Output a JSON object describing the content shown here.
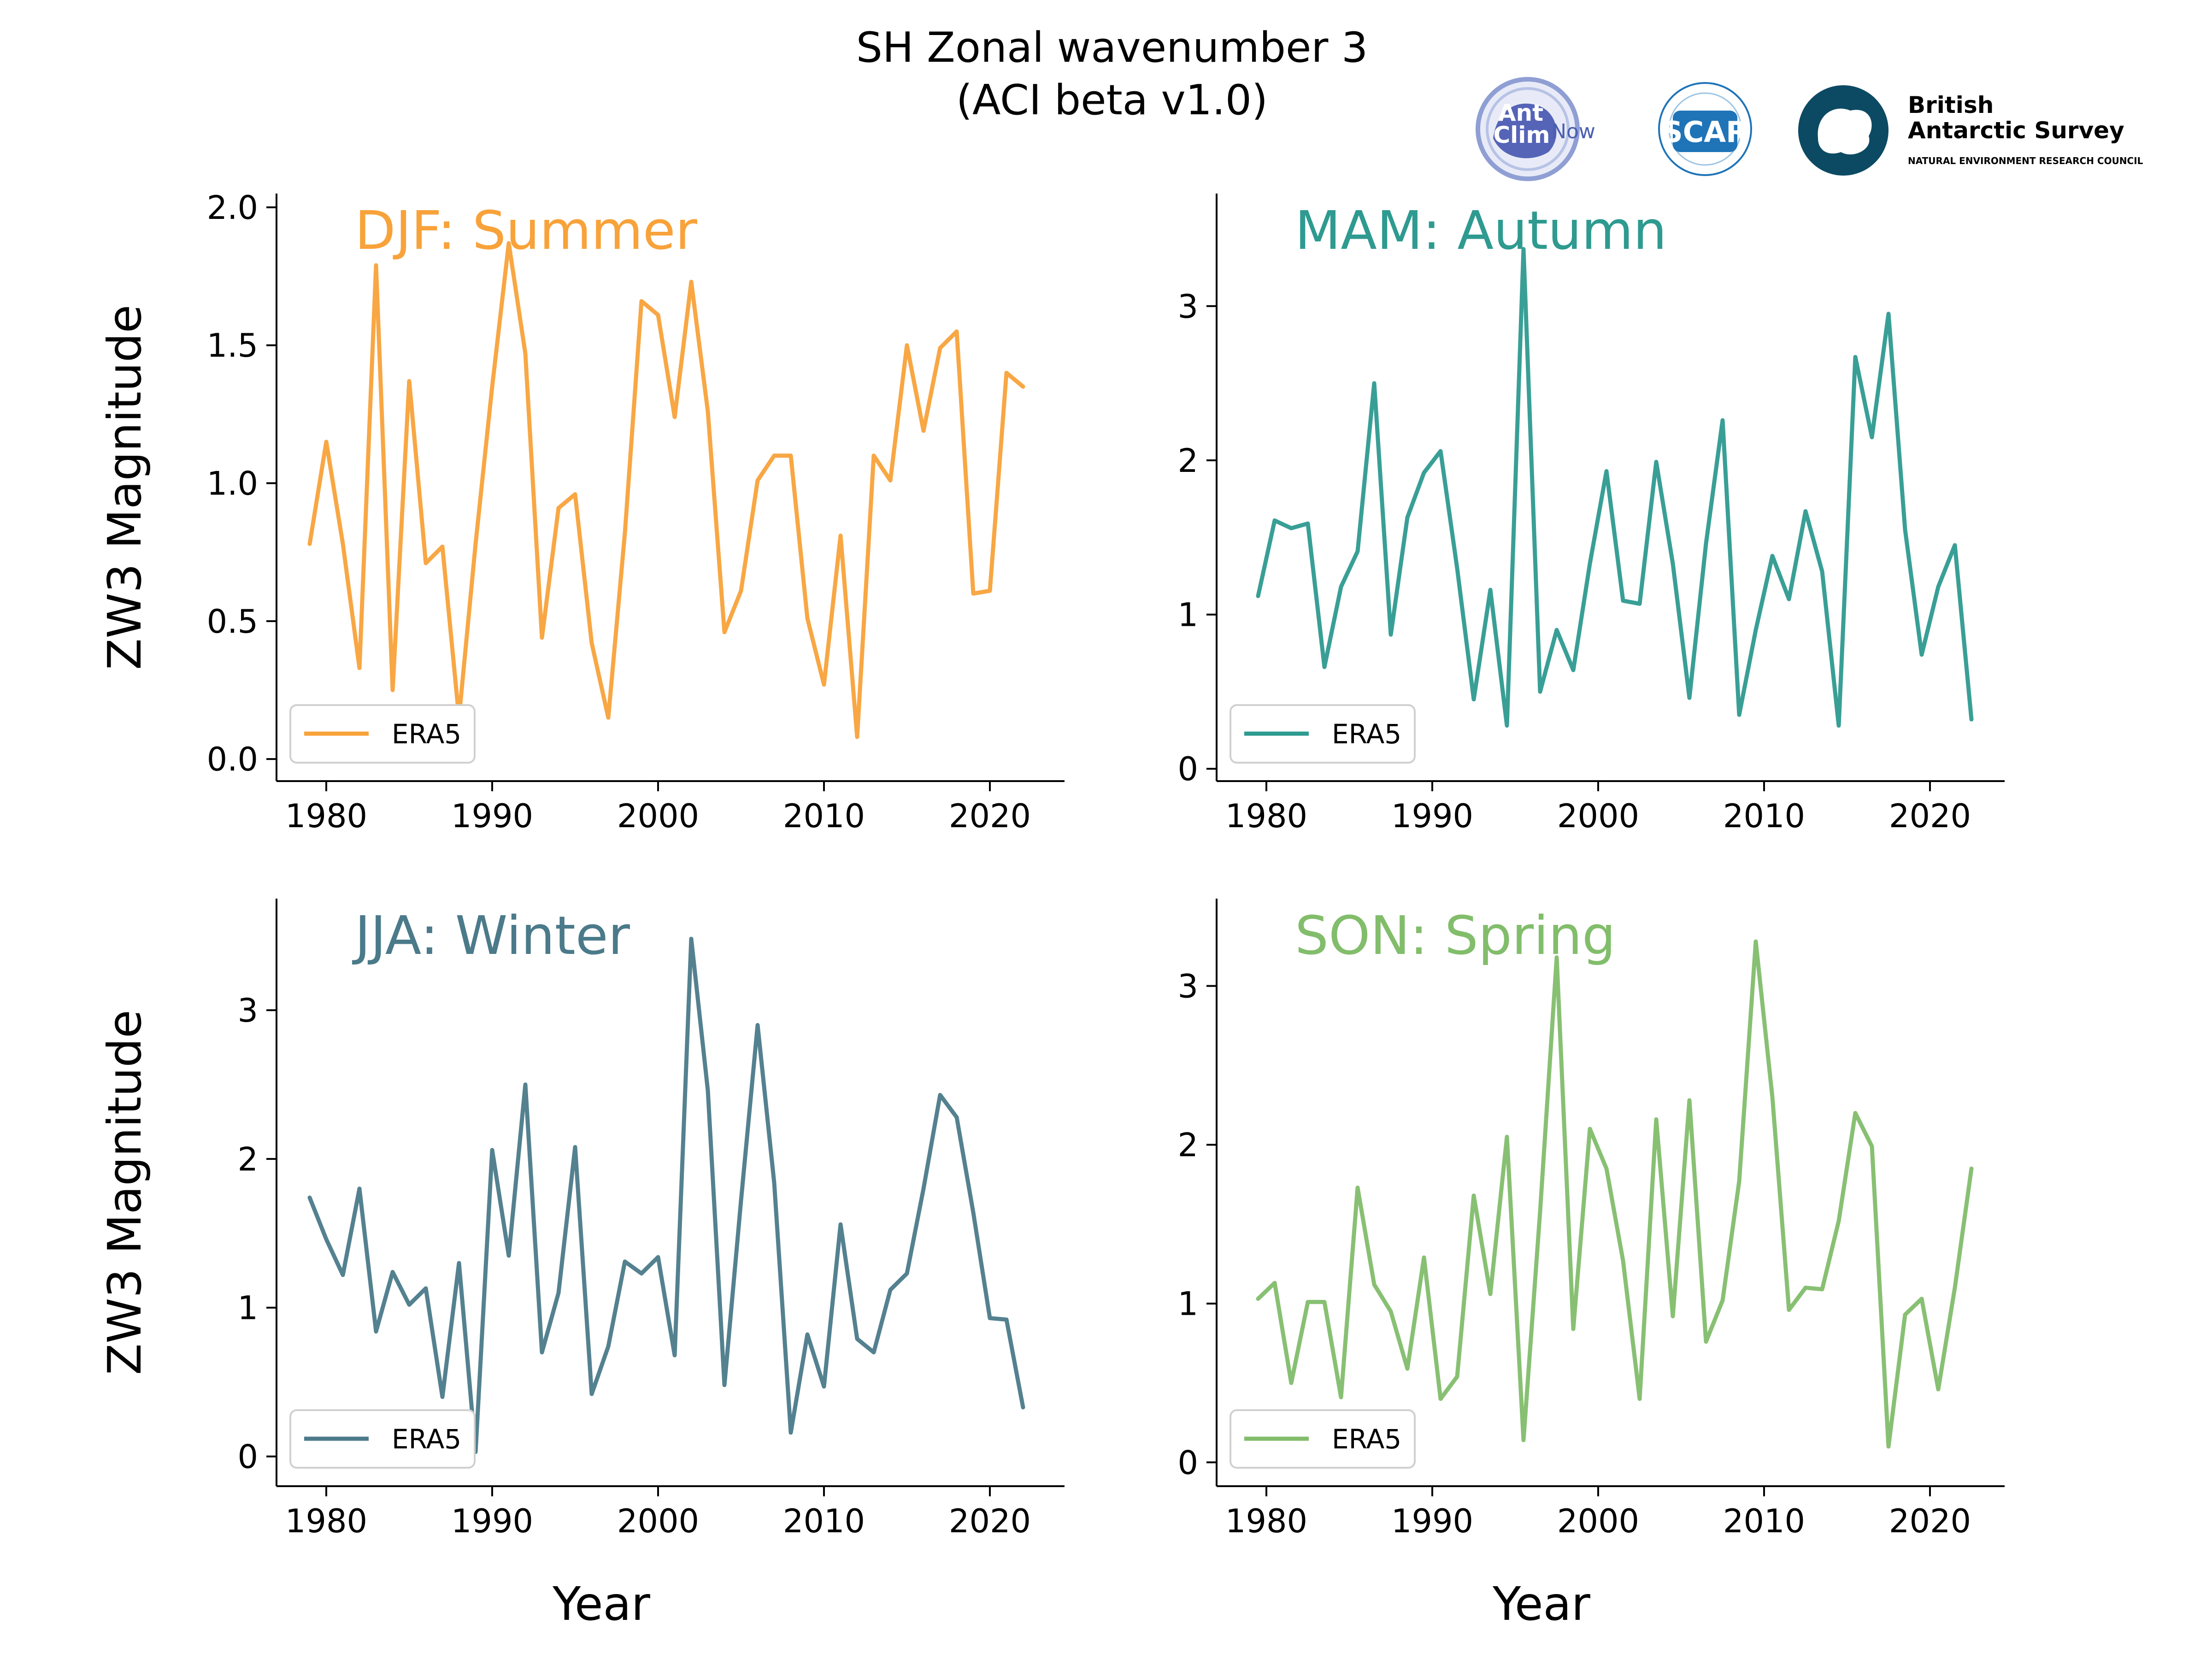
{
  "figure": {
    "title_line1": "SH Zonal wavenumber 3",
    "title_line2": "(ACI beta v1.0)"
  },
  "logos": {
    "antclimnow": {
      "line1": "Ant",
      "line2": "Clim",
      "line3": "Now"
    },
    "scar": {
      "text": "SCAR"
    },
    "bas": {
      "line1": "British",
      "line2": "Antarctic Survey",
      "line3": "NATURAL ENVIRONMENT RESEARCH COUNCIL"
    }
  },
  "chart_data": [
    {
      "type": "line",
      "panel_label": "DJF: Summer",
      "color": "#f8a23a",
      "ylabel": "ZW3 Magnitude",
      "xlabel": "",
      "xlim": [
        1977,
        2024.5
      ],
      "ylim": [
        -0.08,
        2.05
      ],
      "xticks": [
        1980,
        1990,
        2000,
        2010,
        2020
      ],
      "xtick_labels": [
        "1980",
        "1990",
        "2000",
        "2010",
        "2020"
      ],
      "yticks": [
        0.0,
        0.5,
        1.0,
        1.5,
        2.0
      ],
      "ytick_labels": [
        "0.0",
        "0.5",
        "1.0",
        "1.5",
        "2.0"
      ],
      "legend": "lower left",
      "series": [
        {
          "name": "ERA5",
          "x": [
            1979,
            1980,
            1981,
            1982,
            1983,
            1984,
            1985,
            1986,
            1987,
            1988,
            1989,
            1990,
            1991,
            1992,
            1993,
            1994,
            1995,
            1996,
            1997,
            1998,
            1999,
            2000,
            2001,
            2002,
            2003,
            2004,
            2005,
            2006,
            2007,
            2008,
            2009,
            2010,
            2011,
            2012,
            2013,
            2014,
            2015,
            2016,
            2017,
            2018,
            2019,
            2020,
            2021,
            2022
          ],
          "y": [
            0.78,
            1.15,
            0.78,
            0.33,
            1.79,
            0.25,
            1.37,
            0.71,
            0.77,
            0.15,
            0.78,
            1.35,
            1.87,
            1.47,
            0.44,
            0.91,
            0.96,
            0.42,
            0.15,
            0.82,
            1.66,
            1.61,
            1.24,
            1.73,
            1.26,
            0.46,
            0.61,
            1.01,
            1.1,
            1.1,
            0.51,
            0.27,
            0.81,
            0.08,
            1.1,
            1.01,
            1.5,
            1.19,
            1.49,
            1.55,
            0.6,
            0.61,
            1.4,
            1.35
          ]
        }
      ]
    },
    {
      "type": "line",
      "panel_label": "MAM: Autumn",
      "color": "#2e9a90",
      "ylabel": "",
      "xlabel": "",
      "xlim": [
        1977,
        2024.5
      ],
      "ylim": [
        -0.08,
        3.73
      ],
      "xticks": [
        1980,
        1990,
        2000,
        2010,
        2020
      ],
      "xtick_labels": [
        "1980",
        "1990",
        "2000",
        "2010",
        "2020"
      ],
      "yticks": [
        0,
        1,
        2,
        3
      ],
      "ytick_labels": [
        "0",
        "1",
        "2",
        "3"
      ],
      "legend": "lower left",
      "series": [
        {
          "name": "ERA5",
          "x": [
            1979.5,
            1980.5,
            1981.5,
            1982.5,
            1983.5,
            1984.5,
            1985.5,
            1986.5,
            1987.5,
            1988.5,
            1989.5,
            1990.5,
            1991.5,
            1992.5,
            1993.5,
            1994.5,
            1995.5,
            1996.5,
            1997.5,
            1998.5,
            1999.5,
            2000.5,
            2001.5,
            2002.5,
            2003.5,
            2004.5,
            2005.5,
            2006.5,
            2007.5,
            2008.5,
            2009.5,
            2010.5,
            2011.5,
            2012.5,
            2013.5,
            2014.5,
            2015.5,
            2016.5,
            2017.5,
            2018.5,
            2019.5,
            2020.5,
            2021.5,
            2022.5
          ],
          "y": [
            1.12,
            1.61,
            1.56,
            1.59,
            0.66,
            1.18,
            1.41,
            2.5,
            0.87,
            1.63,
            1.92,
            2.06,
            1.3,
            0.45,
            1.16,
            0.28,
            3.37,
            0.5,
            0.9,
            0.64,
            1.33,
            1.93,
            1.09,
            1.07,
            1.99,
            1.33,
            0.46,
            1.46,
            2.26,
            0.35,
            0.9,
            1.38,
            1.1,
            1.67,
            1.28,
            0.28,
            2.67,
            2.15,
            2.95,
            1.55,
            0.74,
            1.18,
            1.45,
            0.32
          ]
        }
      ]
    },
    {
      "type": "line",
      "panel_label": "JJA: Winter",
      "color": "#4b7a8a",
      "ylabel": "ZW3 Magnitude",
      "xlabel": "Year",
      "xlim": [
        1977,
        2024.5
      ],
      "ylim": [
        -0.2,
        3.75
      ],
      "xticks": [
        1980,
        1990,
        2000,
        2010,
        2020
      ],
      "xtick_labels": [
        "1980",
        "1990",
        "2000",
        "2010",
        "2020"
      ],
      "yticks": [
        0,
        1,
        2,
        3
      ],
      "ytick_labels": [
        "0",
        "1",
        "2",
        "3"
      ],
      "legend": "lower left",
      "series": [
        {
          "name": "ERA5",
          "x": [
            1979,
            1980,
            1981,
            1982,
            1983,
            1984,
            1985,
            1986,
            1987,
            1988,
            1989,
            1990,
            1991,
            1992,
            1993,
            1994,
            1995,
            1996,
            1997,
            1998,
            1999,
            2000,
            2001,
            2002,
            2003,
            2004,
            2005,
            2006,
            2007,
            2008,
            2009,
            2010,
            2011,
            2012,
            2013,
            2014,
            2015,
            2016,
            2017,
            2018,
            2019,
            2020,
            2021,
            2022
          ],
          "y": [
            1.74,
            1.46,
            1.22,
            1.8,
            0.84,
            1.24,
            1.02,
            1.13,
            0.4,
            1.3,
            0.03,
            2.06,
            1.35,
            2.5,
            0.7,
            1.1,
            2.08,
            0.42,
            0.74,
            1.31,
            1.23,
            1.34,
            0.68,
            3.48,
            2.46,
            0.48,
            1.72,
            2.9,
            1.84,
            0.16,
            0.82,
            0.47,
            1.56,
            0.79,
            0.7,
            1.12,
            1.23,
            1.8,
            2.43,
            2.28,
            1.64,
            0.93,
            0.92,
            0.33
          ]
        }
      ]
    },
    {
      "type": "line",
      "panel_label": "SON: Spring",
      "color": "#82bd6b",
      "ylabel": "",
      "xlabel": "Year",
      "xlim": [
        1977,
        2024.5
      ],
      "ylim": [
        -0.15,
        3.55
      ],
      "xticks": [
        1980,
        1990,
        2000,
        2010,
        2020
      ],
      "xtick_labels": [
        "1980",
        "1990",
        "2000",
        "2010",
        "2020"
      ],
      "yticks": [
        0,
        1,
        2,
        3
      ],
      "ytick_labels": [
        "0",
        "1",
        "2",
        "3"
      ],
      "legend": "lower left",
      "series": [
        {
          "name": "ERA5",
          "x": [
            1979.5,
            1980.5,
            1981.5,
            1982.5,
            1983.5,
            1984.5,
            1985.5,
            1986.5,
            1987.5,
            1988.5,
            1989.5,
            1990.5,
            1991.5,
            1992.5,
            1993.5,
            1994.5,
            1995.5,
            1996.5,
            1997.5,
            1998.5,
            1999.5,
            2000.5,
            2001.5,
            2002.5,
            2003.5,
            2004.5,
            2005.5,
            2006.5,
            2007.5,
            2008.5,
            2009.5,
            2010.5,
            2011.5,
            2012.5,
            2013.5,
            2014.5,
            2015.5,
            2016.5,
            2017.5,
            2018.5,
            2019.5,
            2020.5,
            2021.5,
            2022.5
          ],
          "y": [
            1.03,
            1.13,
            0.5,
            1.01,
            1.01,
            0.41,
            1.73,
            1.12,
            0.95,
            0.59,
            1.29,
            0.4,
            0.54,
            1.68,
            1.06,
            2.05,
            0.14,
            1.58,
            3.18,
            0.84,
            2.1,
            1.85,
            1.27,
            0.4,
            2.16,
            0.92,
            2.28,
            0.76,
            1.02,
            1.77,
            3.28,
            2.3,
            0.96,
            1.1,
            1.09,
            1.52,
            2.2,
            1.99,
            0.1,
            0.93,
            1.03,
            0.46,
            1.1,
            1.85
          ]
        }
      ]
    }
  ]
}
